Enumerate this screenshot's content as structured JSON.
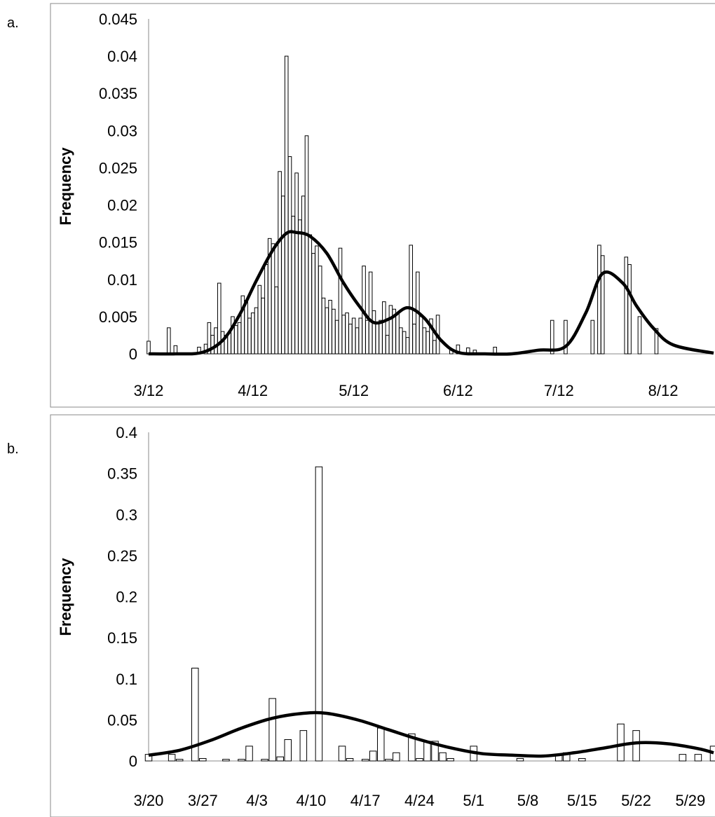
{
  "chart_data": [
    {
      "panel": "a.",
      "type": "bar",
      "ylabel": "Frequency",
      "xlabel": "",
      "ylim": [
        0,
        0.045
      ],
      "yticks": [
        "0",
        "0.005",
        "0.01",
        "0.015",
        "0.02",
        "0.025",
        "0.03",
        "0.035",
        "0.04",
        "0.045"
      ],
      "xticks": [
        "3/12",
        "4/12",
        "5/12",
        "6/12",
        "7/12",
        "8/12"
      ],
      "xlim": [
        "3/12",
        "8/27"
      ],
      "grid": false,
      "series": [
        {
          "type": "bar",
          "x": [
            "3/12",
            "3/18",
            "3/20",
            "3/27",
            "3/29",
            "3/30",
            "3/31",
            "4/1",
            "4/2",
            "4/3",
            "4/4",
            "4/5",
            "4/6",
            "4/7",
            "4/8",
            "4/9",
            "4/10",
            "4/11",
            "4/12",
            "4/13",
            "4/14",
            "4/15",
            "4/16",
            "4/17",
            "4/18",
            "4/19",
            "4/20",
            "4/21",
            "4/22",
            "4/23",
            "4/24",
            "4/25",
            "4/26",
            "4/27",
            "4/28",
            "4/29",
            "4/30",
            "5/1",
            "5/2",
            "5/3",
            "5/4",
            "5/5",
            "5/6",
            "5/7",
            "5/8",
            "5/9",
            "5/10",
            "5/11",
            "5/12",
            "5/13",
            "5/14",
            "5/15",
            "5/16",
            "5/17",
            "5/18",
            "5/19",
            "5/20",
            "5/21",
            "5/22",
            "5/23",
            "5/24",
            "5/25",
            "5/26",
            "5/27",
            "5/28",
            "5/29",
            "5/30",
            "5/31",
            "6/1",
            "6/2",
            "6/3",
            "6/4",
            "6/5",
            "6/6",
            "6/10",
            "6/12",
            "6/15",
            "6/17",
            "6/23",
            "7/10",
            "7/14",
            "7/22",
            "7/24",
            "7/25",
            "8/1",
            "8/2",
            "8/5",
            "8/10"
          ],
          "values": [
            0.0017,
            0.0035,
            0.0011,
            0.0009,
            0.0013,
            0.0042,
            0.0025,
            0.0035,
            0.0095,
            0.003,
            0.0025,
            0.0028,
            0.005,
            0.0038,
            0.0042,
            0.0078,
            0.0072,
            0.0048,
            0.0055,
            0.0062,
            0.0092,
            0.0075,
            0.012,
            0.0155,
            0.0148,
            0.009,
            0.0245,
            0.0212,
            0.04,
            0.0265,
            0.0185,
            0.0243,
            0.018,
            0.0212,
            0.0293,
            0.016,
            0.0135,
            0.0145,
            0.0118,
            0.0075,
            0.0062,
            0.0072,
            0.006,
            0.0045,
            0.0142,
            0.0052,
            0.0055,
            0.004,
            0.0048,
            0.0035,
            0.0048,
            0.0118,
            0.0045,
            0.011,
            0.0058,
            0.0042,
            0.0045,
            0.007,
            0.0025,
            0.0065,
            0.006,
            0.0055,
            0.0035,
            0.003,
            0.0022,
            0.0146,
            0.004,
            0.011,
            0.005,
            0.0035,
            0.003,
            0.0047,
            0.0018,
            0.0052,
            0.0005,
            0.0012,
            0.0008,
            0.0005,
            0.0009,
            0.0045,
            0.0045,
            0.0045,
            0.0146,
            0.0132,
            0.013,
            0.012,
            0.005,
            0.0034
          ]
        },
        {
          "type": "line",
          "x": [
            "3/12",
            "3/20",
            "3/28",
            "4/3",
            "4/8",
            "4/13",
            "4/18",
            "4/22",
            "4/25",
            "4/29",
            "5/4",
            "5/9",
            "5/14",
            "5/18",
            "5/23",
            "5/28",
            "6/2",
            "6/7",
            "6/12",
            "6/20",
            "6/28",
            "7/6",
            "7/14",
            "7/20",
            "7/25",
            "7/31",
            "8/4",
            "8/9",
            "8/15",
            "8/27"
          ],
          "values": [
            0,
            0,
            0.0002,
            0.0018,
            0.0052,
            0.0098,
            0.014,
            0.0162,
            0.0163,
            0.0158,
            0.0135,
            0.0095,
            0.0062,
            0.0042,
            0.0048,
            0.0062,
            0.0048,
            0.0018,
            0.0002,
            0,
            0,
            0.0005,
            0.001,
            0.0055,
            0.0108,
            0.0095,
            0.0065,
            0.0035,
            0.0012,
            0.0001
          ]
        }
      ]
    },
    {
      "panel": "b.",
      "type": "bar",
      "ylabel": "Frequency",
      "xlabel": "",
      "ylim": [
        0,
        0.4
      ],
      "yticks": [
        "0",
        "0.05",
        "0.1",
        "0.15",
        "0.2",
        "0.25",
        "0.3",
        "0.35",
        "0.4"
      ],
      "xticks": [
        "3/20",
        "3/27",
        "4/3",
        "4/10",
        "4/17",
        "4/24",
        "5/1",
        "5/8",
        "5/15",
        "5/22",
        "5/29"
      ],
      "xlim": [
        "3/20",
        "6/1"
      ],
      "grid": false,
      "series": [
        {
          "type": "bar",
          "x": [
            "3/20",
            "3/23",
            "3/24",
            "3/26",
            "3/27",
            "3/30",
            "4/1",
            "4/2",
            "4/4",
            "4/5",
            "4/6",
            "4/7",
            "4/9",
            "4/11",
            "4/14",
            "4/15",
            "4/17",
            "4/18",
            "4/19",
            "4/20",
            "4/21",
            "4/23",
            "4/24",
            "4/25",
            "4/26",
            "4/27",
            "4/28",
            "5/1",
            "5/7",
            "5/12",
            "5/13",
            "5/15",
            "5/20",
            "5/22",
            "5/28",
            "5/30",
            "6/1"
          ],
          "values": [
            0.008,
            0.008,
            0.002,
            0.113,
            0.003,
            0.002,
            0.002,
            0.018,
            0.002,
            0.076,
            0.005,
            0.026,
            0.037,
            0.358,
            0.018,
            0.003,
            0.002,
            0.012,
            0.04,
            0.002,
            0.01,
            0.033,
            0.003,
            0.024,
            0.024,
            0.01,
            0.003,
            0.018,
            0.003,
            0.008,
            0.01,
            0.003,
            0.045,
            0.037,
            0.008,
            0.008,
            0.018
          ]
        },
        {
          "type": "line",
          "x": [
            "3/20",
            "3/24",
            "3/28",
            "4/1",
            "4/5",
            "4/9",
            "4/12",
            "4/16",
            "4/20",
            "4/24",
            "4/28",
            "5/2",
            "5/6",
            "5/10",
            "5/14",
            "5/18",
            "5/22",
            "5/26",
            "5/30",
            "6/1"
          ],
          "values": [
            0.007,
            0.013,
            0.025,
            0.04,
            0.052,
            0.058,
            0.058,
            0.05,
            0.038,
            0.026,
            0.016,
            0.009,
            0.007,
            0.006,
            0.01,
            0.016,
            0.022,
            0.021,
            0.015,
            0.01
          ]
        }
      ]
    }
  ]
}
